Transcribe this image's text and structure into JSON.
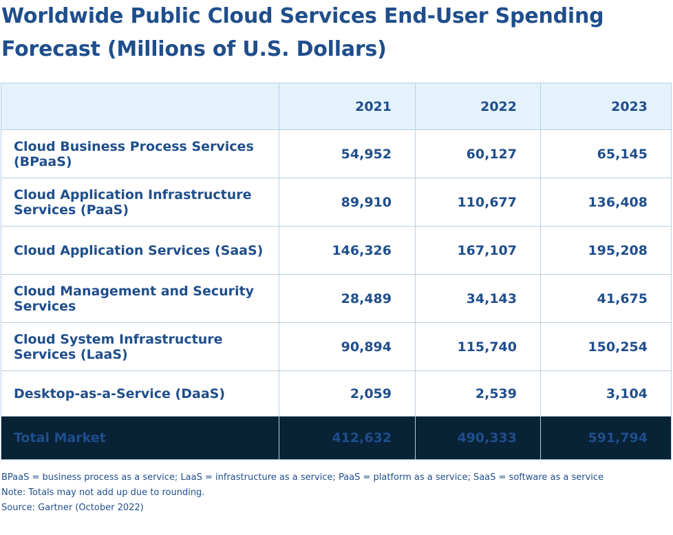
{
  "chart_data": {
    "type": "table",
    "title": "Worldwide Public Cloud Services End-User Spending Forecast (Millions of U.S. Dollars)",
    "columns": [
      "",
      "2021",
      "2022",
      "2023"
    ],
    "rows": [
      {
        "label": "Cloud Business Process Services (BPaaS)",
        "values": [
          "54,952",
          "60,127",
          "65,145"
        ]
      },
      {
        "label": "Cloud Application Infrastructure Services (PaaS)",
        "values": [
          "89,910",
          "110,677",
          "136,408"
        ]
      },
      {
        "label": "Cloud Application Services (SaaS)",
        "values": [
          "146,326",
          "167,107",
          "195,208"
        ]
      },
      {
        "label": "Cloud Management and Security Services",
        "values": [
          "28,489",
          "34,143",
          "41,675"
        ]
      },
      {
        "label": "Cloud System Infrastructure Services (LaaS)",
        "values": [
          "90,894",
          "115,740",
          "150,254"
        ]
      },
      {
        "label": "Desktop-as-a-Service (DaaS)",
        "values": [
          "2,059",
          "2,539",
          "3,104"
        ]
      }
    ],
    "total": {
      "label": "Total Market",
      "values": [
        "412,632",
        "490,333",
        "591,794"
      ]
    },
    "notes": [
      "BPaaS = business process as a service; LaaS = infrastructure as a service; PaaS = platform as a service; SaaS = software as a service",
      "Note: Totals may not add up due to rounding.",
      "Source: Gartner (October 2022)"
    ]
  },
  "colors": {
    "text": "#1f4e8c",
    "header_bg": "#e4f2fc",
    "total_bg": "#082236",
    "border": "#b7cfe3"
  }
}
